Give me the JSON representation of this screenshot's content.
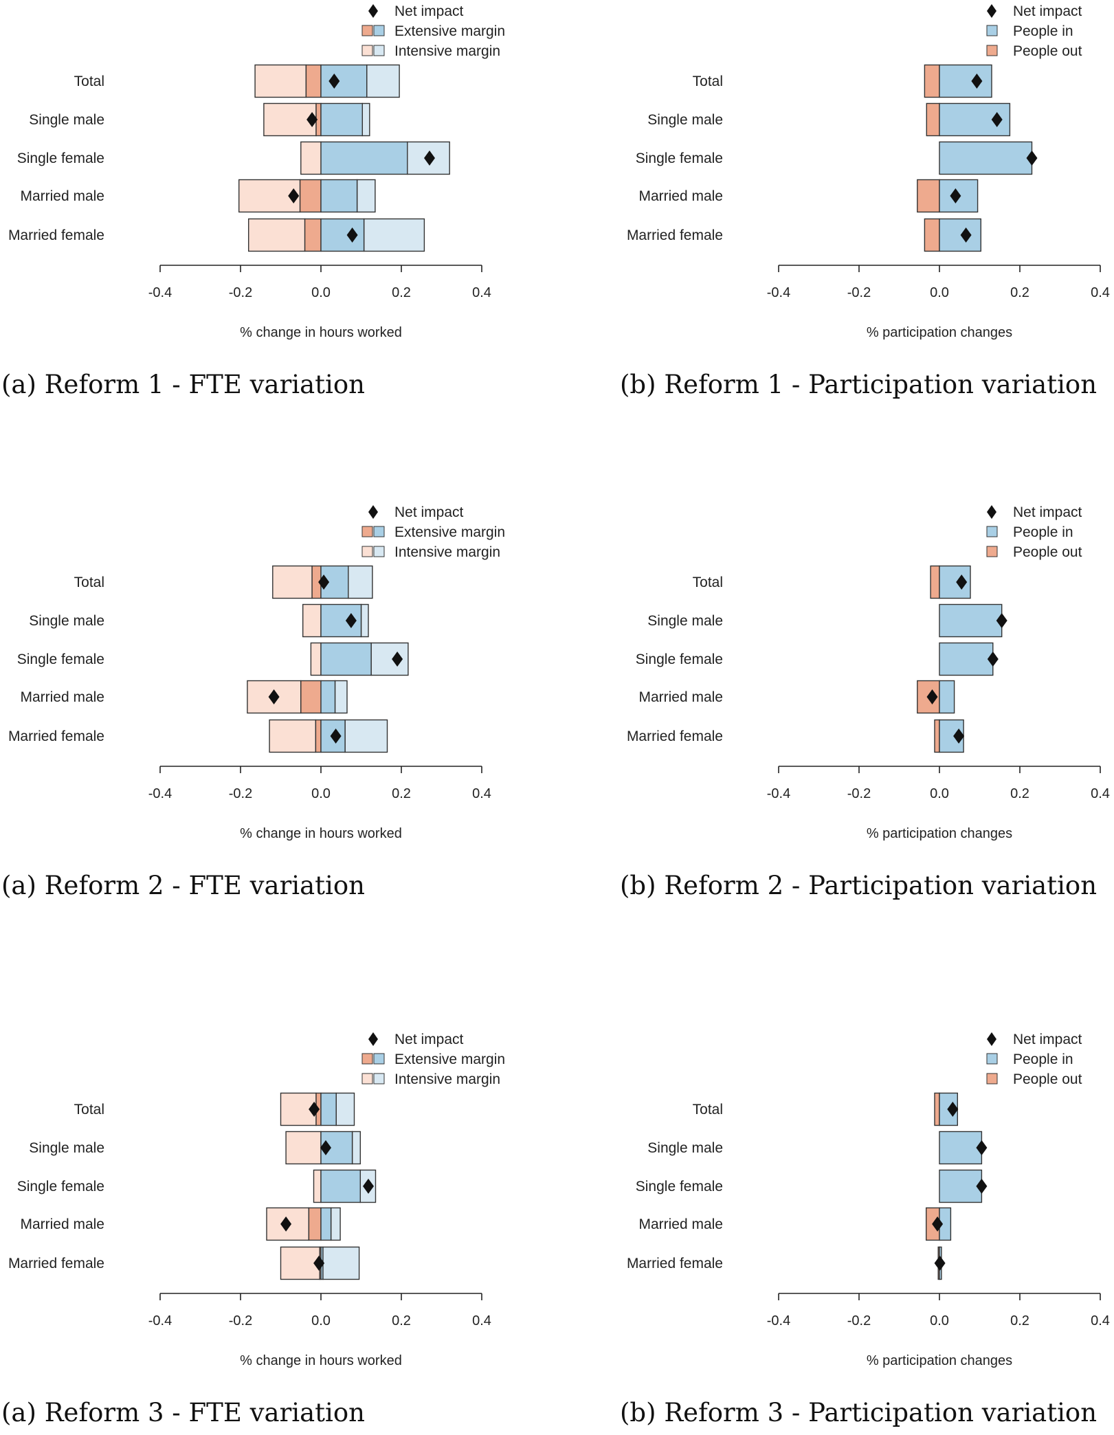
{
  "chart_data": [
    {
      "type": "bar",
      "variant": "fte",
      "caption": "(a) Reform 1 - FTE variation",
      "xlabel": "% change in hours worked",
      "xlim": [
        -0.4,
        0.4
      ],
      "ticks": [
        -0.4,
        -0.2,
        0.0,
        0.2,
        0.4
      ],
      "tick_labels": [
        "-0.4",
        "-0.2",
        "0.0",
        "0.2",
        "0.4"
      ],
      "legend": {
        "position": "top-right",
        "entries": [
          "Net impact",
          "Extensive margin",
          "Intensive margin"
        ]
      },
      "categories": [
        "Total",
        "Single male",
        "Single female",
        "Married male",
        "Married female"
      ],
      "series": [
        {
          "key": "extensive_neg",
          "values": [
            -0.037,
            -0.012,
            0.0,
            -0.052,
            -0.04
          ]
        },
        {
          "key": "intensive_neg",
          "values": [
            -0.127,
            -0.13,
            -0.05,
            -0.152,
            -0.14
          ]
        },
        {
          "key": "extensive_pos",
          "values": [
            0.114,
            0.103,
            0.215,
            0.09,
            0.107
          ]
        },
        {
          "key": "intensive_pos",
          "values": [
            0.081,
            0.018,
            0.105,
            0.045,
            0.15
          ]
        },
        {
          "key": "net",
          "values": [
            0.033,
            -0.022,
            0.27,
            -0.068,
            0.078
          ]
        }
      ]
    },
    {
      "type": "bar",
      "variant": "participation",
      "caption": "(b) Reform 1 - Participation variation",
      "xlabel": "% participation changes",
      "xlim": [
        -0.4,
        0.4
      ],
      "ticks": [
        -0.4,
        -0.2,
        0.0,
        0.2,
        0.4
      ],
      "tick_labels": [
        "-0.4",
        "-0.2",
        "0.0",
        "0.2",
        "0.4"
      ],
      "legend": {
        "position": "top-right",
        "entries": [
          "Net impact",
          "People in",
          "People out"
        ]
      },
      "categories": [
        "Total",
        "Single male",
        "Single female",
        "Married male",
        "Married female"
      ],
      "series": [
        {
          "key": "people_out",
          "values": [
            -0.037,
            -0.032,
            0.0,
            -0.055,
            -0.037
          ]
        },
        {
          "key": "people_in",
          "values": [
            0.13,
            0.175,
            0.23,
            0.095,
            0.103
          ]
        },
        {
          "key": "net",
          "values": [
            0.093,
            0.143,
            0.23,
            0.04,
            0.066
          ]
        }
      ]
    },
    {
      "type": "bar",
      "variant": "fte",
      "caption": "(a) Reform 2 - FTE variation",
      "xlabel": "% change in hours worked",
      "xlim": [
        -0.4,
        0.4
      ],
      "ticks": [
        -0.4,
        -0.2,
        0.0,
        0.2,
        0.4
      ],
      "tick_labels": [
        "-0.4",
        "-0.2",
        "0.0",
        "0.2",
        "0.4"
      ],
      "legend": {
        "position": "top-right",
        "entries": [
          "Net impact",
          "Extensive margin",
          "Intensive margin"
        ]
      },
      "categories": [
        "Total",
        "Single male",
        "Single female",
        "Married male",
        "Married female"
      ],
      "series": [
        {
          "key": "extensive_neg",
          "values": [
            -0.022,
            0.0,
            0.0,
            -0.05,
            -0.013
          ]
        },
        {
          "key": "intensive_neg",
          "values": [
            -0.098,
            -0.045,
            -0.025,
            -0.133,
            -0.115
          ]
        },
        {
          "key": "extensive_pos",
          "values": [
            0.068,
            0.1,
            0.125,
            0.035,
            0.06
          ]
        },
        {
          "key": "intensive_pos",
          "values": [
            0.06,
            0.018,
            0.092,
            0.03,
            0.105
          ]
        },
        {
          "key": "net",
          "values": [
            0.007,
            0.075,
            0.19,
            -0.117,
            0.037
          ]
        }
      ]
    },
    {
      "type": "bar",
      "variant": "participation",
      "caption": "(b) Reform 2 - Participation variation",
      "xlabel": "% participation changes",
      "xlim": [
        -0.4,
        0.4
      ],
      "ticks": [
        -0.4,
        -0.2,
        0.0,
        0.2,
        0.4
      ],
      "tick_labels": [
        "-0.4",
        "-0.2",
        "0.0",
        "0.2",
        "0.4"
      ],
      "legend": {
        "position": "top-right",
        "entries": [
          "Net impact",
          "People in",
          "People out"
        ]
      },
      "categories": [
        "Total",
        "Single male",
        "Single female",
        "Married male",
        "Married female"
      ],
      "series": [
        {
          "key": "people_out",
          "values": [
            -0.022,
            0.0,
            0.0,
            -0.055,
            -0.012
          ]
        },
        {
          "key": "people_in",
          "values": [
            0.077,
            0.155,
            0.133,
            0.037,
            0.06
          ]
        },
        {
          "key": "net",
          "values": [
            0.055,
            0.155,
            0.133,
            -0.018,
            0.048
          ]
        }
      ]
    },
    {
      "type": "bar",
      "variant": "fte",
      "caption": "(a) Reform 3 - FTE variation",
      "xlabel": "% change in hours worked",
      "xlim": [
        -0.4,
        0.4
      ],
      "ticks": [
        -0.4,
        -0.2,
        0.0,
        0.2,
        0.4
      ],
      "tick_labels": [
        "-0.4",
        "-0.2",
        "0.0",
        "0.2",
        "0.4"
      ],
      "legend": {
        "position": "top-right",
        "entries": [
          "Net impact",
          "Extensive margin",
          "Intensive margin"
        ]
      },
      "categories": [
        "Total",
        "Single male",
        "Single female",
        "Married male",
        "Married female"
      ],
      "series": [
        {
          "key": "extensive_neg",
          "values": [
            -0.012,
            0.0,
            0.0,
            -0.03,
            -0.003
          ]
        },
        {
          "key": "intensive_neg",
          "values": [
            -0.088,
            -0.087,
            -0.018,
            -0.105,
            -0.097
          ]
        },
        {
          "key": "extensive_pos",
          "values": [
            0.038,
            0.078,
            0.098,
            0.025,
            0.005
          ]
        },
        {
          "key": "intensive_pos",
          "values": [
            0.045,
            0.02,
            0.038,
            0.023,
            0.09
          ]
        },
        {
          "key": "net",
          "values": [
            -0.017,
            0.012,
            0.118,
            -0.087,
            -0.005
          ]
        }
      ]
    },
    {
      "type": "bar",
      "variant": "participation",
      "caption": "(b) Reform 3 - Participation variation",
      "xlabel": "% participation changes",
      "xlim": [
        -0.4,
        0.4
      ],
      "ticks": [
        -0.4,
        -0.2,
        0.0,
        0.2,
        0.4
      ],
      "tick_labels": [
        "-0.4",
        "-0.2",
        "0.0",
        "0.2",
        "0.4"
      ],
      "legend": {
        "position": "top-right",
        "entries": [
          "Net impact",
          "People in",
          "People out"
        ]
      },
      "categories": [
        "Total",
        "Single male",
        "Single female",
        "Married male",
        "Married female"
      ],
      "series": [
        {
          "key": "people_out",
          "values": [
            -0.012,
            0.0,
            0.0,
            -0.033,
            -0.003
          ]
        },
        {
          "key": "people_in",
          "values": [
            0.045,
            0.105,
            0.105,
            0.028,
            0.005
          ]
        },
        {
          "key": "net",
          "values": [
            0.033,
            0.105,
            0.105,
            -0.005,
            0.001
          ]
        }
      ]
    }
  ],
  "colors": {
    "extensive_neg": "#eeaa8e",
    "intensive_neg": "#fbe0d4",
    "extensive_pos": "#a9cfe5",
    "intensive_pos": "#d8e8f2",
    "people_in": "#a9cfe5",
    "people_out": "#eeaa8e",
    "marker": "#111111",
    "stroke": "#333333"
  }
}
